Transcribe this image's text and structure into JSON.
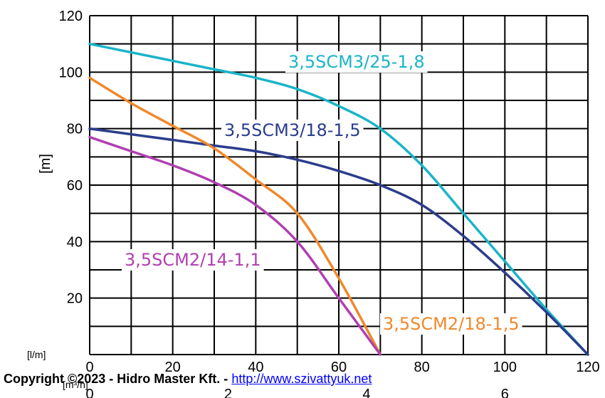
{
  "chart_data": {
    "type": "line",
    "ylabel": "[m]",
    "x_unit_primary": "[l/m]",
    "x_unit_secondary": "[m³/h]",
    "xlim": [
      0,
      120
    ],
    "ylim": [
      0,
      120
    ],
    "grid": true,
    "x_ticks_primary": [
      "0",
      "20",
      "40",
      "60",
      "80",
      "100",
      "120"
    ],
    "x_ticks_secondary": [
      "0",
      "2",
      "4",
      "6"
    ],
    "y_ticks": [
      "20",
      "40",
      "60",
      "80",
      "100",
      "120"
    ],
    "series": [
      {
        "name": "3,5SCM3/25-1,8",
        "color": "#1ab4c8",
        "x": [
          0,
          10,
          20,
          30,
          40,
          50,
          60,
          70,
          80,
          90,
          100,
          110,
          120
        ],
        "y": [
          110,
          107,
          104,
          101,
          98,
          94,
          88,
          80,
          67,
          50,
          33,
          16,
          0
        ]
      },
      {
        "name": "3,5SCM3/18-1,5",
        "color": "#2b3d8c",
        "x": [
          0,
          10,
          20,
          30,
          40,
          50,
          60,
          70,
          80,
          90,
          100,
          110,
          120
        ],
        "y": [
          80,
          78,
          76,
          74,
          72,
          69,
          65,
          60,
          53,
          42,
          29,
          15,
          0
        ]
      },
      {
        "name": "3,5SCM2/18-1,5",
        "color": "#f0882a",
        "x": [
          0,
          10,
          20,
          30,
          40,
          50,
          60,
          70
        ],
        "y": [
          98,
          89,
          81,
          73,
          62,
          50,
          27,
          0
        ]
      },
      {
        "name": "3,5SCM2/14-1,1",
        "color": "#b040b0",
        "x": [
          0,
          10,
          20,
          30,
          40,
          50,
          60,
          70
        ],
        "y": [
          77,
          72,
          67,
          61,
          53,
          40,
          20,
          0
        ]
      }
    ]
  },
  "footer": {
    "copyright": "Copyright ©2023 - Hidro Master Kft. - ",
    "link": "http://www.szivattyuk.net"
  }
}
